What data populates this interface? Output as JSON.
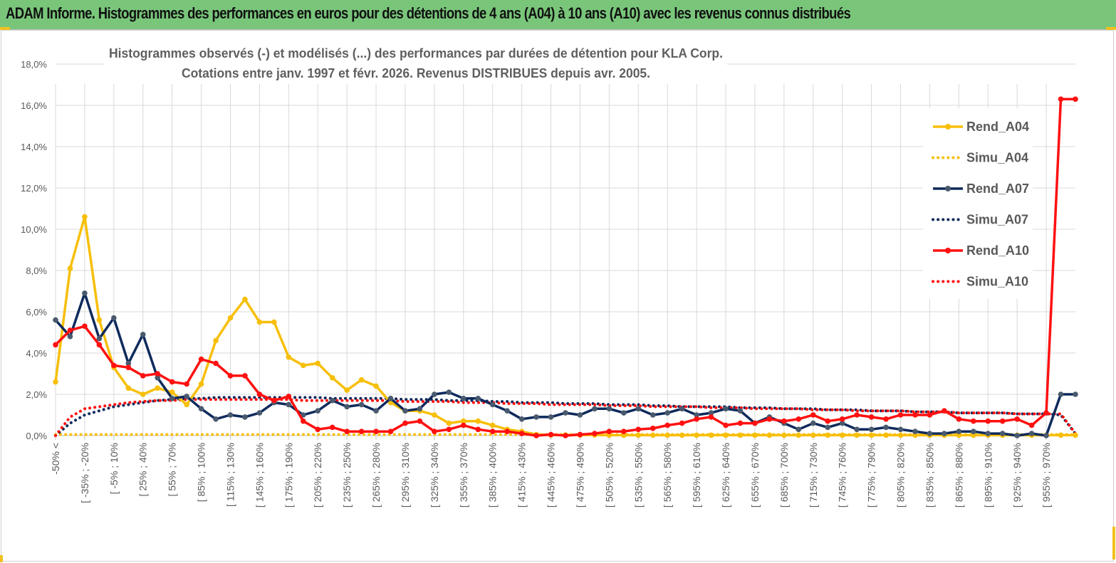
{
  "header": {
    "title": "ADAM Informe. Histogrammes des performances en euros pour des détentions de 4 ans (A04) à 10 ans (A10) avec les revenus connus distribués"
  },
  "colors": {
    "banner": "#79c67a",
    "A04": "#f7bf0a",
    "A07": "#0e2a5c",
    "A07_marker": "#4a5a6e",
    "A10": "#ff1010",
    "grid": "#d9d9d9"
  },
  "chart_data": {
    "type": "line",
    "title_lines": [
      "Histogrammes observés (-) et modélisés (...) des performances par durées de détention pour KLA Corp.",
      "Cotations entre janv. 1997 et févr. 2026. Revenus DISTRIBUES depuis avr. 2005."
    ],
    "ylim": [
      0,
      18
    ],
    "y_ticks": [
      "0,0%",
      "2,0%",
      "4,0%",
      "6,0%",
      "8,0%",
      "10,0%",
      "12,0%",
      "14,0%",
      "16,0%",
      "18,0%"
    ],
    "x_labels": [
      "-50% <",
      "[ -35% ; -20%",
      "[ -5% ; 10%",
      "[ 25% ; 40%",
      "[ 55% ; 70%",
      "[ 85% ; 100%",
      "[ 115% ; 130%",
      "[ 145% ; 160%",
      "[ 175% ; 190%",
      "[ 205% ; 220%",
      "[ 235% ; 250%",
      "[ 265% ; 280%",
      "[ 295% ; 310%",
      "[ 325% ; 340%",
      "[ 355% ; 370%",
      "[ 385% ; 400%",
      "[ 415% ; 430%",
      "[ 445% ; 460%",
      "[ 475% ; 490%",
      "[ 505% ; 520%",
      "[ 535% ; 550%",
      "[ 565% ; 580%",
      "[ 595% ; 610%",
      "[ 625% ; 640%",
      "[ 655% ; 670%",
      "[ 685% ; 700%",
      "[ 715% ; 730%",
      "[ 745% ; 760%",
      "[ 775% ; 790%",
      "[ 805% ; 820%",
      "[ 835% ; 850%",
      "[ 865% ; 880%",
      "[ 895% ; 910%",
      "[ 925% ; 940%",
      "[ 955% ; 970%"
    ],
    "series": [
      {
        "name": "Rend_A04",
        "style": "solid",
        "color": "#f7bf0a",
        "values": [
          2.6,
          8.1,
          10.6,
          5.6,
          3.3,
          2.3,
          2.0,
          2.3,
          2.1,
          1.5,
          2.5,
          4.6,
          5.7,
          6.6,
          5.5,
          5.5,
          3.8,
          3.4,
          3.5,
          2.8,
          2.2,
          2.7,
          2.4,
          1.6,
          1.2,
          1.2,
          1.0,
          0.6,
          0.7,
          0.7,
          0.5,
          0.3,
          0.2,
          0.05,
          0.03,
          0.03,
          0.03,
          0.03,
          0.02,
          0.02,
          0.02,
          0.02,
          0.02,
          0.02,
          0.02,
          0.02,
          0.02,
          0.02,
          0.02,
          0.02,
          0.02,
          0.02,
          0.02,
          0.02,
          0.02,
          0.02,
          0.02,
          0.02,
          0.02,
          0.02,
          0.02,
          0.02,
          0.02,
          0.02,
          0.02,
          0.02,
          0.02,
          0.02,
          0.02,
          0.02,
          0.02
        ]
      },
      {
        "name": "Simu_A04",
        "style": "dotted",
        "color": "#f7bf0a",
        "values": [
          0.05,
          0.05,
          0.05,
          0.05,
          0.05,
          0.05,
          0.05,
          0.05,
          0.05,
          0.05,
          0.05,
          0.05,
          0.05,
          0.05,
          0.05,
          0.05,
          0.05,
          0.05,
          0.05,
          0.05,
          0.05,
          0.05,
          0.05,
          0.05,
          0.05,
          0.05,
          0.05,
          0.05,
          0.05,
          0.05,
          0.05,
          0.05,
          0.05,
          0.05,
          0.05,
          0.05,
          0.05,
          0.05,
          0.05,
          0.05,
          0.05,
          0.05,
          0.05,
          0.05,
          0.05,
          0.05,
          0.05,
          0.05,
          0.05,
          0.05,
          0.05,
          0.05,
          0.05,
          0.05,
          0.05,
          0.05,
          0.05,
          0.05,
          0.05,
          0.05,
          0.05,
          0.05,
          0.05,
          0.05,
          0.05,
          0.05,
          0.05,
          0.05,
          0.05,
          0.05,
          0.05
        ]
      },
      {
        "name": "Rend_A07",
        "style": "solid",
        "color": "#0e2a5c",
        "values": [
          5.6,
          4.8,
          6.9,
          4.7,
          5.7,
          3.5,
          4.9,
          2.8,
          1.8,
          1.9,
          1.3,
          0.8,
          1.0,
          0.9,
          1.1,
          1.6,
          1.5,
          1.0,
          1.2,
          1.7,
          1.4,
          1.5,
          1.2,
          1.8,
          1.2,
          1.3,
          2.0,
          2.1,
          1.8,
          1.8,
          1.5,
          1.2,
          0.8,
          0.9,
          0.9,
          1.1,
          1.0,
          1.3,
          1.3,
          1.1,
          1.3,
          1.0,
          1.1,
          1.3,
          1.0,
          1.1,
          1.3,
          1.2,
          0.6,
          0.9,
          0.6,
          0.3,
          0.6,
          0.4,
          0.6,
          0.3,
          0.3,
          0.4,
          0.3,
          0.2,
          0.1,
          0.1,
          0.2,
          0.2,
          0.1,
          0.1,
          0.0,
          0.1,
          0.0,
          2.0,
          2.0
        ]
      },
      {
        "name": "Simu_A07",
        "style": "dotted",
        "color": "#0e2a5c",
        "values": [
          0.0,
          0.6,
          1.0,
          1.2,
          1.4,
          1.5,
          1.6,
          1.7,
          1.75,
          1.8,
          1.8,
          1.85,
          1.85,
          1.85,
          1.85,
          1.85,
          1.85,
          1.85,
          1.85,
          1.8,
          1.8,
          1.8,
          1.8,
          1.8,
          1.75,
          1.75,
          1.75,
          1.7,
          1.7,
          1.7,
          1.65,
          1.65,
          1.6,
          1.6,
          1.6,
          1.55,
          1.55,
          1.55,
          1.5,
          1.5,
          1.5,
          1.45,
          1.45,
          1.4,
          1.4,
          1.4,
          1.4,
          1.35,
          1.35,
          1.35,
          1.3,
          1.3,
          1.3,
          1.25,
          1.25,
          1.25,
          1.2,
          1.2,
          1.2,
          1.15,
          1.15,
          1.15,
          1.1,
          1.1,
          1.1,
          1.1,
          1.05,
          1.05,
          1.05,
          1.0,
          0.1
        ]
      },
      {
        "name": "Rend_A10",
        "style": "solid",
        "color": "#ff1010",
        "values": [
          4.4,
          5.1,
          5.3,
          4.4,
          3.4,
          3.3,
          2.9,
          3.0,
          2.6,
          2.5,
          3.7,
          3.5,
          2.9,
          2.9,
          2.0,
          1.7,
          1.9,
          0.7,
          0.3,
          0.4,
          0.2,
          0.2,
          0.2,
          0.2,
          0.6,
          0.7,
          0.2,
          0.3,
          0.5,
          0.3,
          0.2,
          0.2,
          0.1,
          0.0,
          0.05,
          0.0,
          0.05,
          0.1,
          0.2,
          0.2,
          0.3,
          0.35,
          0.5,
          0.6,
          0.8,
          0.9,
          0.5,
          0.6,
          0.6,
          0.8,
          0.7,
          0.8,
          1.0,
          0.7,
          0.8,
          1.0,
          0.9,
          0.8,
          1.0,
          1.0,
          1.0,
          1.2,
          0.8,
          0.7,
          0.7,
          0.7,
          0.8,
          0.5,
          1.1,
          16.3,
          16.3
        ]
      },
      {
        "name": "Simu_A10",
        "style": "dotted",
        "color": "#ff1010",
        "values": [
          0.0,
          0.9,
          1.3,
          1.4,
          1.5,
          1.6,
          1.65,
          1.7,
          1.7,
          1.75,
          1.75,
          1.75,
          1.75,
          1.75,
          1.75,
          1.75,
          1.75,
          1.7,
          1.7,
          1.7,
          1.7,
          1.7,
          1.7,
          1.7,
          1.65,
          1.65,
          1.65,
          1.65,
          1.6,
          1.6,
          1.6,
          1.55,
          1.55,
          1.55,
          1.5,
          1.5,
          1.5,
          1.5,
          1.45,
          1.45,
          1.45,
          1.4,
          1.4,
          1.4,
          1.4,
          1.35,
          1.35,
          1.35,
          1.3,
          1.3,
          1.3,
          1.3,
          1.25,
          1.25,
          1.25,
          1.2,
          1.2,
          1.2,
          1.2,
          1.15,
          1.15,
          1.15,
          1.1,
          1.1,
          1.1,
          1.1,
          1.05,
          1.05,
          1.05,
          1.05,
          0.1
        ]
      }
    ],
    "legend": [
      "Rend_A04",
      "Simu_A04",
      "Rend_A07",
      "Simu_A07",
      "Rend_A10",
      "Simu_A10"
    ],
    "legend_position": "right"
  }
}
